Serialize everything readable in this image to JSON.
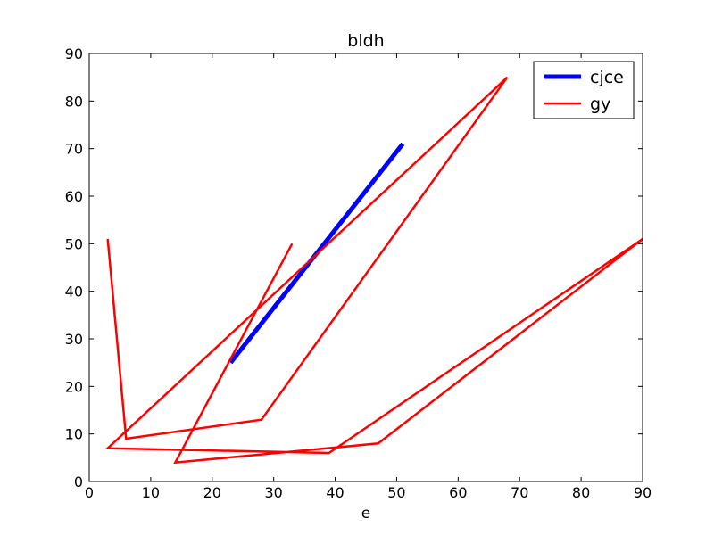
{
  "chart_data": {
    "type": "line",
    "title": "bldh",
    "xlabel": "e",
    "ylabel": "",
    "xlim": [
      0,
      90
    ],
    "ylim": [
      0,
      90
    ],
    "xticks": [
      0,
      10,
      20,
      30,
      40,
      50,
      60,
      70,
      80,
      90
    ],
    "yticks": [
      0,
      10,
      20,
      30,
      40,
      50,
      60,
      70,
      80,
      90
    ],
    "grid": false,
    "legend_position": "top-right",
    "series": [
      {
        "name": "cjce",
        "color": "#0000ff",
        "line_style": "thick",
        "points": [
          [
            23,
            25
          ],
          [
            51,
            71
          ]
        ]
      },
      {
        "name": "gy",
        "color": "#ff0000",
        "line_style": "normal",
        "points": [
          [
            3,
            51
          ],
          [
            6,
            9
          ],
          [
            28,
            13
          ],
          [
            68,
            85
          ],
          [
            3,
            7
          ],
          [
            39,
            6
          ],
          [
            90,
            51
          ],
          [
            47,
            8
          ],
          [
            14,
            4
          ],
          [
            33,
            50
          ]
        ]
      }
    ]
  }
}
